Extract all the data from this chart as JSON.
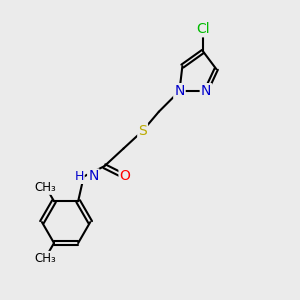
{
  "bg_color": "#ebebeb",
  "bond_color": "#000000",
  "bond_width": 1.5,
  "atom_colors": {
    "C": "#000000",
    "N": "#0000cc",
    "O": "#ff0000",
    "S": "#bbaa00",
    "Cl": "#00bb00",
    "H": "#000000"
  },
  "font_size": 9,
  "fig_size": [
    3.0,
    3.0
  ],
  "xlim": [
    0,
    10
  ],
  "ylim": [
    0,
    10
  ]
}
